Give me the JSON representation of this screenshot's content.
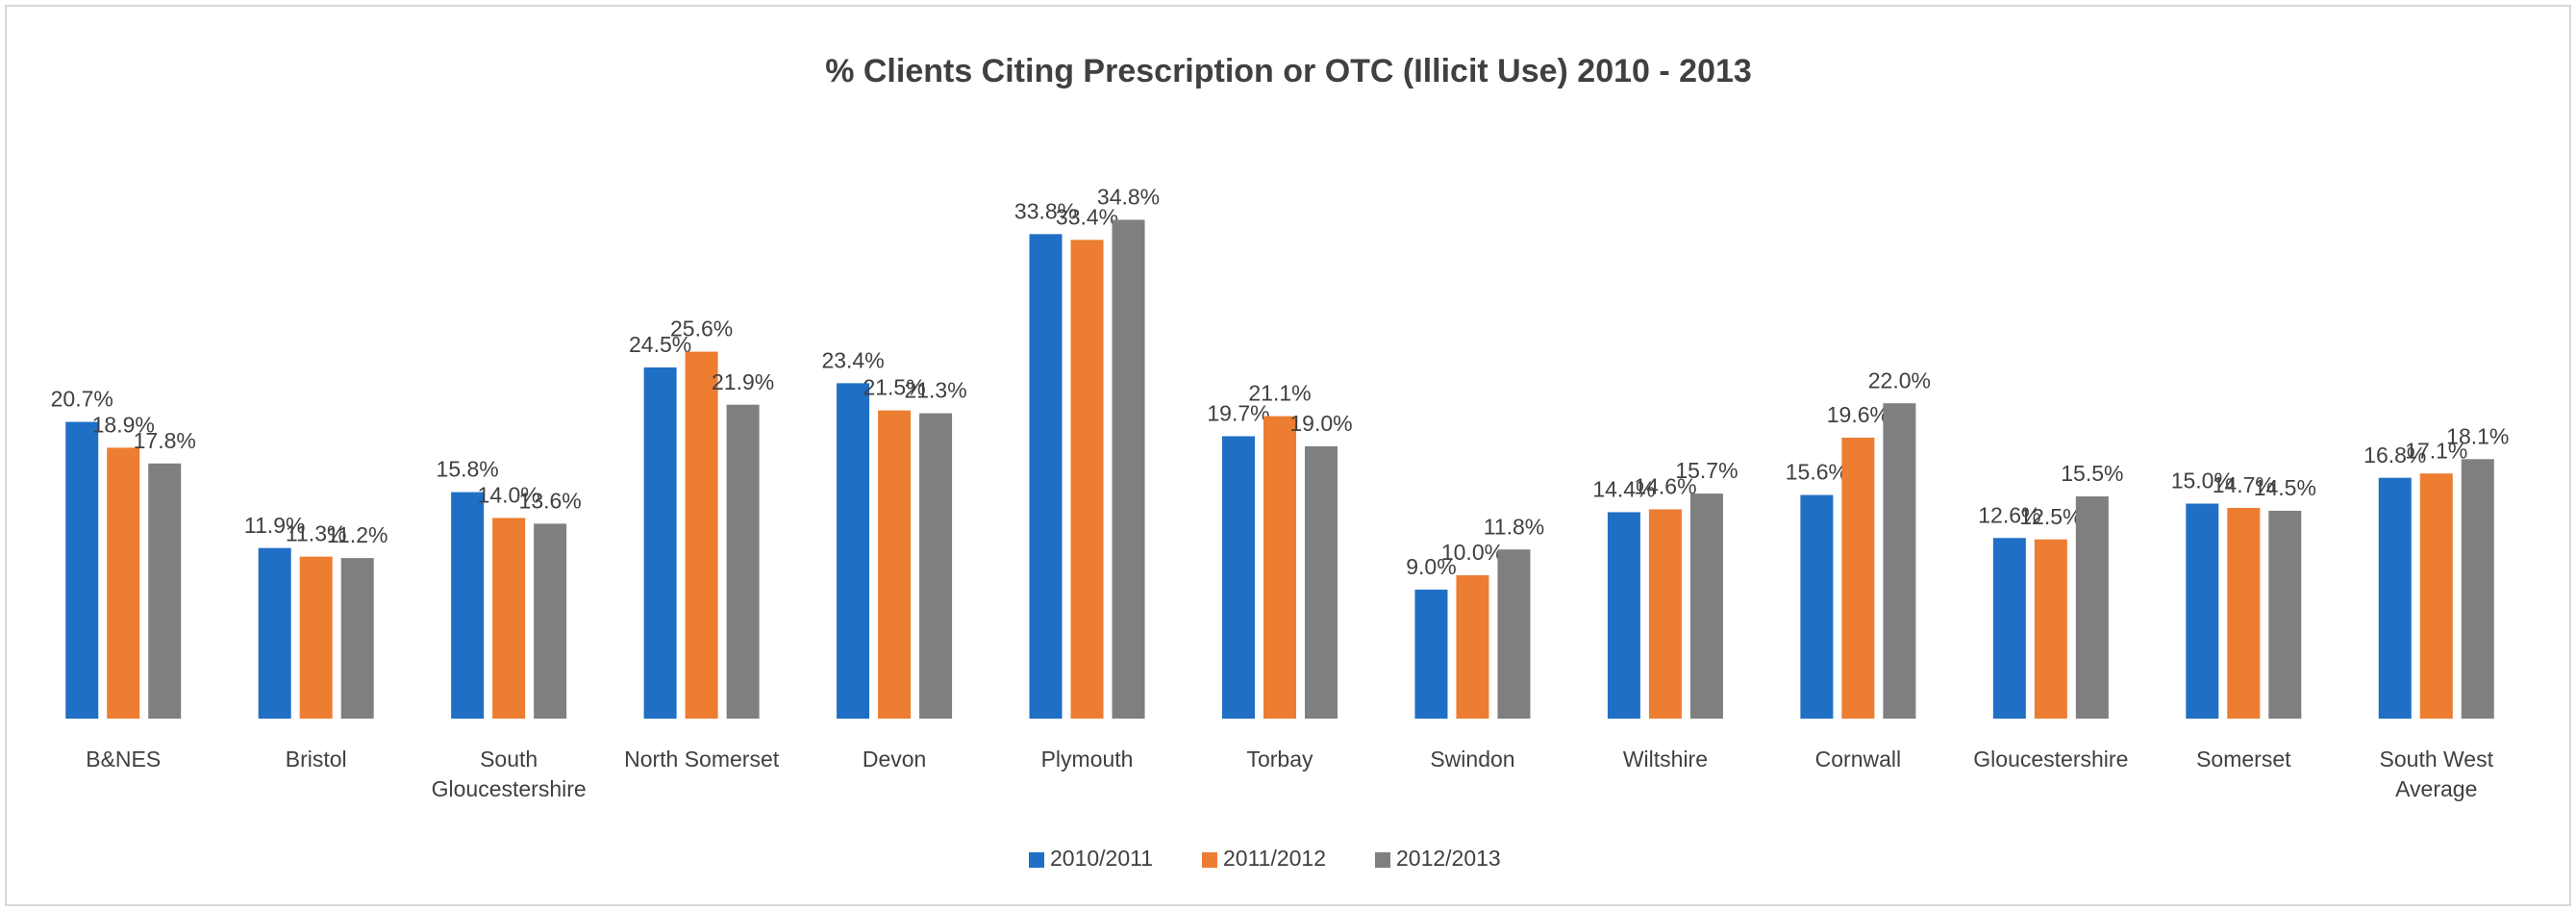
{
  "chart_data": {
    "type": "bar",
    "title": "% Clients Citing Prescription or OTC (Illicit Use) 2010 - 2013",
    "categories": [
      "B&NES",
      "Bristol",
      "South Gloucestershire",
      "North Somerset",
      "Devon",
      "Plymouth",
      "Torbay",
      "Swindon",
      "Wiltshire",
      "Cornwall",
      "Gloucestershire",
      "Somerset",
      "South West Average"
    ],
    "series": [
      {
        "name": "2010/2011",
        "color": "#1f6fc5",
        "values": [
          20.7,
          11.9,
          15.8,
          24.5,
          23.4,
          33.8,
          19.7,
          9.0,
          14.4,
          15.6,
          12.6,
          15.0,
          16.8
        ],
        "value_labels": [
          "20.7%",
          "11.9%",
          "15.8%",
          "24.5%",
          "23.4%",
          "33.8%",
          "19.7%",
          "9.0%",
          "14.4%",
          "15.6%",
          "12.6%",
          "15.0%",
          "16.8%"
        ]
      },
      {
        "name": "2011/2012",
        "color": "#ed7d31",
        "values": [
          18.9,
          11.3,
          14.0,
          25.6,
          21.5,
          33.4,
          21.1,
          10.0,
          14.6,
          19.6,
          12.5,
          14.7,
          17.1
        ],
        "value_labels": [
          "18.9%",
          "11.3%",
          "14.0%",
          "25.6%",
          "21.5%",
          "33.4%",
          "21.1%",
          "10.0%",
          "14.6%",
          "19.6%",
          "12.5%",
          "14.7%",
          "17.1%"
        ]
      },
      {
        "name": "2012/2013",
        "color": "#7f7f7f",
        "values": [
          17.8,
          11.2,
          13.6,
          21.9,
          21.3,
          34.8,
          19.0,
          11.8,
          15.7,
          22.0,
          15.5,
          14.5,
          18.1
        ],
        "value_labels": [
          "17.8%",
          "11.2%",
          "13.6%",
          "21.9%",
          "21.3%",
          "34.8%",
          "19.0%",
          "11.8%",
          "15.7%",
          "22.0%",
          "15.5%",
          "14.5%",
          "18.1%"
        ]
      }
    ],
    "legend": "bottom"
  }
}
